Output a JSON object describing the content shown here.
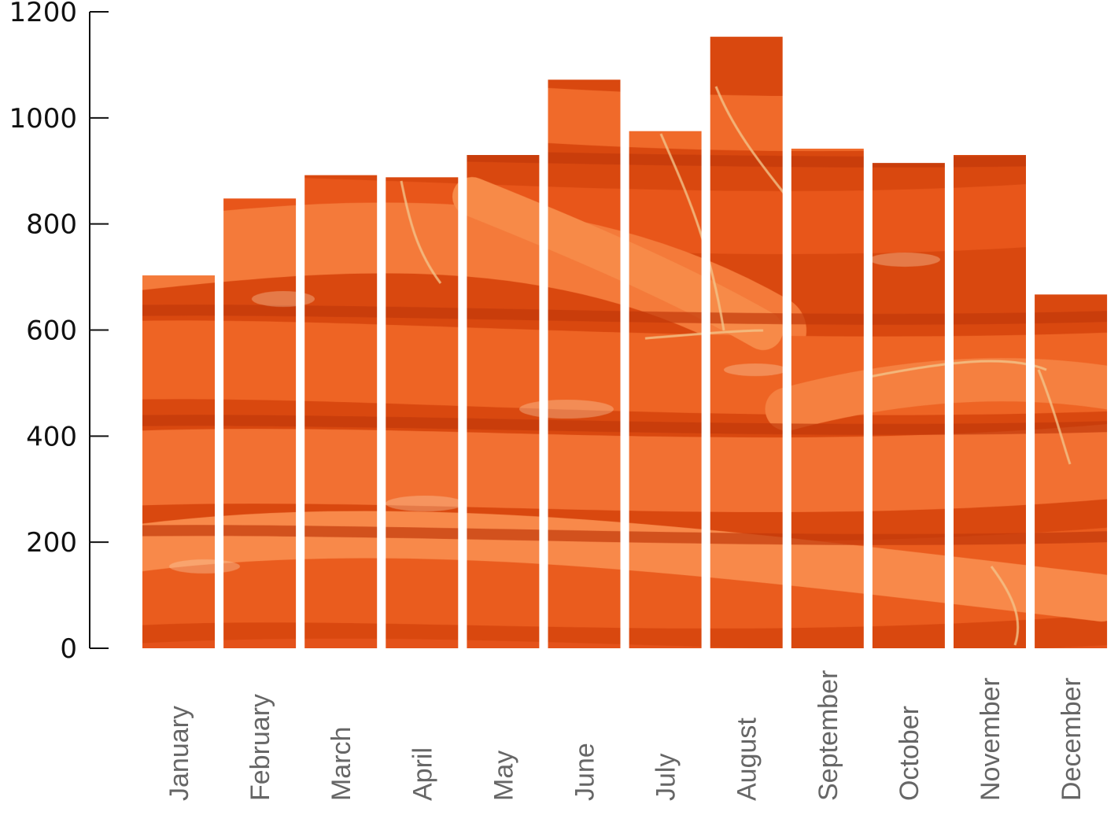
{
  "chart_data": {
    "type": "bar",
    "title": "",
    "xlabel": "",
    "ylabel": "",
    "categories": [
      "January",
      "February",
      "March",
      "April",
      "May",
      "June",
      "July",
      "August",
      "September",
      "October",
      "November",
      "December"
    ],
    "values": [
      703,
      848,
      892,
      888,
      930,
      1072,
      975,
      1153,
      942,
      915,
      930,
      667
    ],
    "ylim": [
      0,
      1200
    ],
    "yticks": [
      "0",
      "200",
      "400",
      "600",
      "800",
      "1000",
      "1200"
    ],
    "grid": false,
    "legend": "none",
    "bar_fill": "photo of carrots",
    "colors": {
      "carrot_orange": "#e65a1e",
      "carrot_light": "#f07a3a",
      "carrot_dark": "#b83a0c",
      "axis": "#111111",
      "category_label": "#666666"
    }
  }
}
